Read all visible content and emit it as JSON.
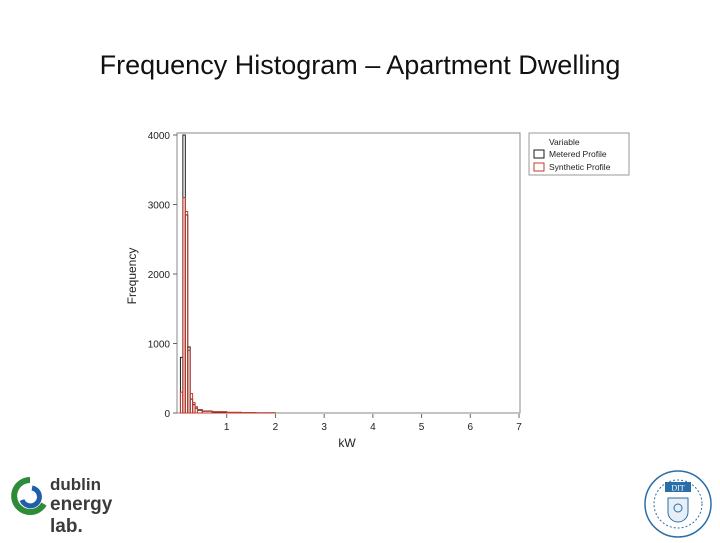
{
  "slide": {
    "title": "Frequency Histogram – Apartment Dwelling"
  },
  "chart_data": {
    "type": "histogram",
    "xlabel": "kW",
    "ylabel": "Frequency",
    "xlim": [
      0,
      7
    ],
    "ylim": [
      0,
      4000
    ],
    "x_ticks": [
      "1",
      "2",
      "3",
      "4",
      "5",
      "6",
      "7"
    ],
    "y_ticks": [
      "0",
      "1000",
      "2000",
      "3000",
      "4000"
    ],
    "legend": {
      "title": "Variable",
      "position": "top-right-outside"
    },
    "series": [
      {
        "name": "Metered Profile",
        "color": "#1a1a1a",
        "bins": [
          [
            0.05,
            0.1,
            800
          ],
          [
            0.1,
            0.15,
            4000
          ],
          [
            0.15,
            0.2,
            2850
          ],
          [
            0.2,
            0.25,
            950
          ],
          [
            0.25,
            0.3,
            200
          ],
          [
            0.3,
            0.35,
            120
          ],
          [
            0.35,
            0.4,
            70
          ],
          [
            0.4,
            0.5,
            40
          ],
          [
            0.5,
            0.7,
            25
          ],
          [
            0.7,
            1.0,
            15
          ],
          [
            1.0,
            1.3,
            8
          ],
          [
            1.3,
            1.6,
            4
          ],
          [
            1.6,
            2.0,
            2
          ],
          [
            2.0,
            7.0,
            0
          ]
        ]
      },
      {
        "name": "Synthetic Profile",
        "color": "#c0392b",
        "bins": [
          [
            0.05,
            0.1,
            300
          ],
          [
            0.1,
            0.15,
            3100
          ],
          [
            0.15,
            0.2,
            2900
          ],
          [
            0.2,
            0.25,
            900
          ],
          [
            0.25,
            0.3,
            280
          ],
          [
            0.3,
            0.35,
            150
          ],
          [
            0.35,
            0.4,
            90
          ],
          [
            0.4,
            0.5,
            50
          ],
          [
            0.5,
            0.7,
            30
          ],
          [
            0.7,
            1.0,
            20
          ],
          [
            1.0,
            1.3,
            10
          ],
          [
            1.3,
            1.6,
            5
          ],
          [
            1.6,
            2.0,
            2
          ],
          [
            2.0,
            7.0,
            0
          ]
        ]
      }
    ]
  },
  "logos": {
    "left": {
      "line1": "dublin",
      "line2": "energy lab."
    },
    "right": {
      "text": "DIT"
    }
  }
}
